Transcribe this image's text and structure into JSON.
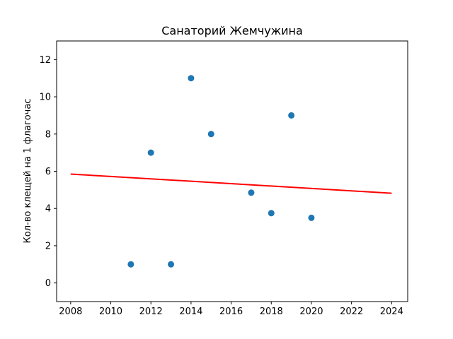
{
  "chart_data": {
    "type": "scatter",
    "title": "Санаторий Жемчужина",
    "xlabel": "",
    "ylabel": "Кол-во клещей на 1 флагочас",
    "xlim": [
      2007.3,
      2024.8
    ],
    "ylim": [
      -1,
      13
    ],
    "xticks": [
      "2008",
      "2010",
      "2012",
      "2014",
      "2016",
      "2018",
      "2020",
      "2022",
      "2024"
    ],
    "yticks": [
      "0",
      "2",
      "4",
      "6",
      "8",
      "10",
      "12"
    ],
    "grid": false,
    "legend": "none",
    "points": {
      "color": "#1f77b4",
      "x": [
        2011,
        2012,
        2013,
        2014,
        2015,
        2017,
        2018,
        2019,
        2020
      ],
      "y": [
        1.0,
        7.0,
        1.0,
        11.0,
        8.0,
        4.85,
        3.75,
        9.0,
        3.5
      ]
    },
    "trend_line": {
      "color": "#ff0000",
      "x": [
        2008,
        2024
      ],
      "y": [
        5.85,
        4.82
      ]
    }
  }
}
